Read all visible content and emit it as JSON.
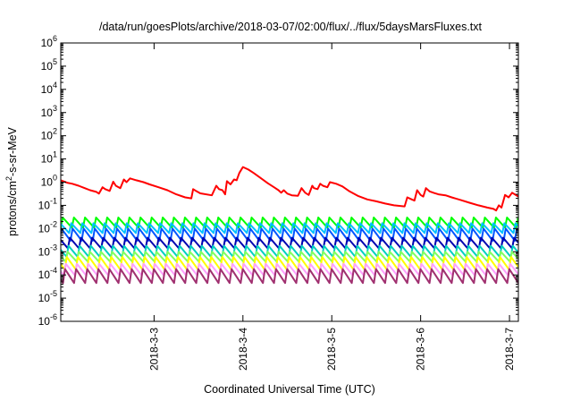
{
  "chart_data": {
    "type": "line",
    "title": "/data/run/goesPlots/archive/2018-03-07/02:00/flux/../flux/5daysMarsFluxes.txt",
    "xlabel": "Coordinated Universal Time (UTC)",
    "ylabel_parts": {
      "pre": "protons/cm",
      "sup": "2",
      "post": "-s-sr-MeV"
    },
    "y_scale": "log",
    "ylim_exponent": [
      -6,
      6
    ],
    "y_tick_base": "10",
    "y_tick_exponents": [
      "-6",
      "-5",
      "-4",
      "-3",
      "-2",
      "-1",
      "0",
      "1",
      "2",
      "3",
      "4",
      "5",
      "6"
    ],
    "xlim_days": [
      -1.05,
      4.1
    ],
    "x_ticks": [
      {
        "label": "2018-3-3",
        "day": 0
      },
      {
        "label": "2018-3-4",
        "day": 1
      },
      {
        "label": "2018-3-5",
        "day": 2
      },
      {
        "label": "2018-3-6",
        "day": 3
      },
      {
        "label": "2018-3-7",
        "day": 4
      }
    ],
    "grid": false,
    "legend": "none",
    "red_series": {
      "color": "#ff0000",
      "points": [
        [
          -1.05,
          1.2
        ],
        [
          -0.98,
          0.95
        ],
        [
          -0.92,
          0.85
        ],
        [
          -0.85,
          0.7
        ],
        [
          -0.78,
          0.55
        ],
        [
          -0.72,
          0.45
        ],
        [
          -0.65,
          0.38
        ],
        [
          -0.62,
          0.32
        ],
        [
          -0.58,
          0.6
        ],
        [
          -0.55,
          0.5
        ],
        [
          -0.5,
          0.42
        ],
        [
          -0.46,
          1.05
        ],
        [
          -0.43,
          0.7
        ],
        [
          -0.38,
          0.55
        ],
        [
          -0.34,
          1.3
        ],
        [
          -0.31,
          1.0
        ],
        [
          -0.27,
          1.45
        ],
        [
          -0.2,
          1.2
        ],
        [
          -0.12,
          1.0
        ],
        [
          -0.05,
          0.8
        ],
        [
          0.05,
          0.6
        ],
        [
          0.15,
          0.45
        ],
        [
          0.25,
          0.3
        ],
        [
          0.35,
          0.22
        ],
        [
          0.42,
          0.2
        ],
        [
          0.44,
          0.5
        ],
        [
          0.48,
          0.4
        ],
        [
          0.52,
          0.33
        ],
        [
          0.65,
          0.27
        ],
        [
          0.7,
          0.7
        ],
        [
          0.73,
          0.5
        ],
        [
          0.77,
          0.45
        ],
        [
          0.8,
          0.3
        ],
        [
          0.82,
          1.1
        ],
        [
          0.86,
          0.8
        ],
        [
          0.9,
          1.3
        ],
        [
          0.93,
          1.2
        ],
        [
          0.96,
          2.5
        ],
        [
          1.0,
          4.5
        ],
        [
          1.06,
          3.5
        ],
        [
          1.12,
          2.5
        ],
        [
          1.2,
          1.5
        ],
        [
          1.28,
          0.9
        ],
        [
          1.35,
          0.6
        ],
        [
          1.4,
          0.45
        ],
        [
          1.43,
          0.35
        ],
        [
          1.46,
          0.45
        ],
        [
          1.5,
          0.32
        ],
        [
          1.55,
          0.27
        ],
        [
          1.62,
          0.26
        ],
        [
          1.66,
          0.55
        ],
        [
          1.7,
          0.35
        ],
        [
          1.74,
          0.28
        ],
        [
          1.78,
          0.7
        ],
        [
          1.8,
          0.55
        ],
        [
          1.84,
          0.5
        ],
        [
          1.87,
          0.85
        ],
        [
          1.9,
          0.7
        ],
        [
          1.95,
          0.6
        ],
        [
          1.98,
          1.0
        ],
        [
          2.05,
          0.85
        ],
        [
          2.12,
          0.65
        ],
        [
          2.2,
          0.4
        ],
        [
          2.3,
          0.25
        ],
        [
          2.4,
          0.18
        ],
        [
          2.5,
          0.15
        ],
        [
          2.6,
          0.12
        ],
        [
          2.7,
          0.1
        ],
        [
          2.82,
          0.09
        ],
        [
          2.85,
          0.22
        ],
        [
          2.9,
          0.18
        ],
        [
          2.93,
          0.16
        ],
        [
          2.96,
          0.45
        ],
        [
          3.0,
          0.28
        ],
        [
          3.03,
          0.24
        ],
        [
          3.06,
          0.55
        ],
        [
          3.1,
          0.4
        ],
        [
          3.15,
          0.34
        ],
        [
          3.2,
          0.3
        ],
        [
          3.28,
          0.27
        ],
        [
          3.35,
          0.22
        ],
        [
          3.45,
          0.17
        ],
        [
          3.55,
          0.13
        ],
        [
          3.65,
          0.1
        ],
        [
          3.75,
          0.08
        ],
        [
          3.82,
          0.07
        ],
        [
          3.85,
          0.06
        ],
        [
          3.88,
          0.1
        ],
        [
          3.91,
          0.08
        ],
        [
          3.95,
          0.28
        ],
        [
          3.99,
          0.22
        ],
        [
          4.03,
          0.35
        ],
        [
          4.06,
          0.3
        ],
        [
          4.1,
          0.24
        ]
      ]
    },
    "sawtooth_series": [
      {
        "color": "#00ff00",
        "peak": 0.03,
        "trough": 0.011,
        "period": 0.125,
        "phase": 0.0
      },
      {
        "color": "#00c0ff",
        "peak": 0.017,
        "trough": 0.006,
        "period": 0.125,
        "phase": 0.03
      },
      {
        "color": "#0055ff",
        "peak": 0.01,
        "trough": 0.003,
        "period": 0.125,
        "phase": 0.015
      },
      {
        "color": "#0000b0",
        "peak": 0.004,
        "trough": 0.0013,
        "period": 0.125,
        "phase": 0.045
      },
      {
        "color": "#00d0c0",
        "peak": 0.0018,
        "trough": 0.0006,
        "period": 0.125,
        "phase": 0.06
      },
      {
        "color": "#80ff60",
        "peak": 0.001,
        "trough": 0.00035,
        "period": 0.125,
        "phase": 0.07
      },
      {
        "color": "#ffff00",
        "peak": 0.0006,
        "trough": 0.00017,
        "period": 0.125,
        "phase": 0.08
      },
      {
        "color": "#ffa0ff",
        "peak": 0.0003,
        "trough": 9e-05,
        "period": 0.125,
        "phase": 0.09
      },
      {
        "color": "#a03070",
        "peak": 0.00018,
        "trough": 4.5e-05,
        "period": 0.125,
        "phase": 0.1
      }
    ]
  }
}
